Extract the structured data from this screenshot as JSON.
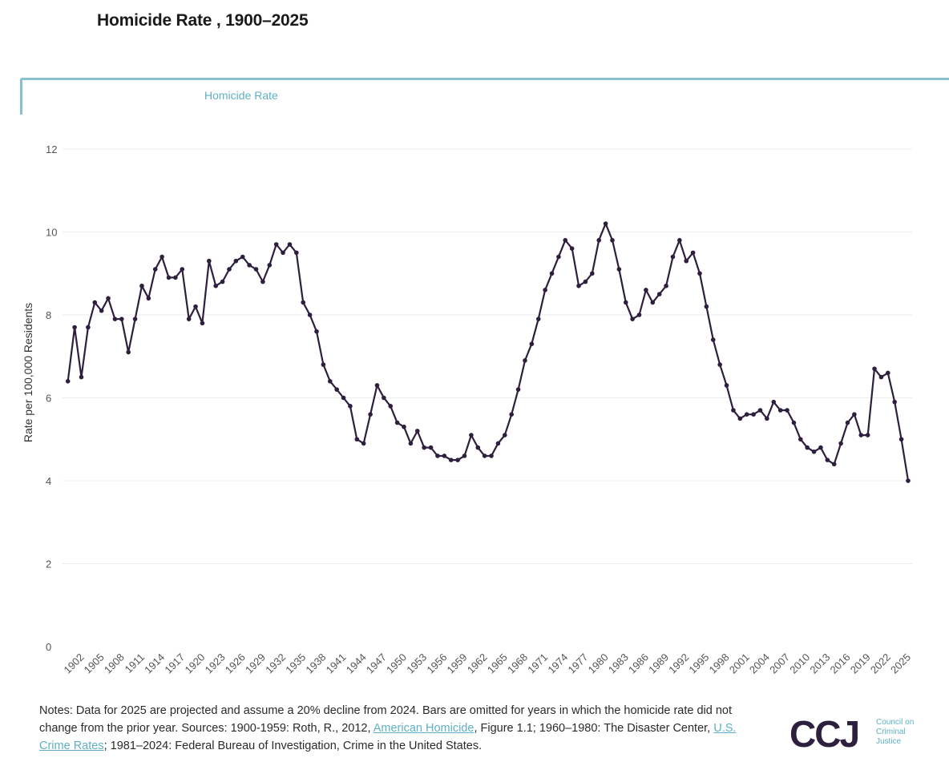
{
  "header": {
    "title": "Homicide Rate , 1900–2025"
  },
  "tabs": [
    {
      "label": "Homicide Rate"
    }
  ],
  "notes": {
    "part1": "Notes: Data for 2025 are projected and assume a 20% decline from 2024. Bars are omitted for years in which the homicide rate did not change from the prior year. Sources: 1900-1959: Roth, R., 2012, ",
    "link1": "American Homicide",
    "part2": ", Figure 1.1; 1960–1980: The Disaster Center, ",
    "link2": "U.S. Crime Rates",
    "part3": "; 1981–2024: Federal Bureau of Investigation, Crime in the United States."
  },
  "logo": {
    "mark": "CCJ",
    "line1": "Council on",
    "line2": "Criminal",
    "line3": "Justice"
  },
  "colors": {
    "line": "#2d1f3d",
    "accent": "#5fb0c4",
    "grid": "#ececec",
    "tick": "#555555"
  },
  "chart_data": {
    "type": "line",
    "title": "Homicide Rate , 1900–2025",
    "xlabel": "",
    "ylabel": "Rate per 100,000 Residents",
    "ylim": [
      0,
      12
    ],
    "yticks": [
      0,
      2,
      4,
      6,
      8,
      10,
      12
    ],
    "grid": true,
    "series": [
      {
        "name": "Homicide Rate",
        "x": [
          1900,
          1901,
          1902,
          1903,
          1904,
          1905,
          1906,
          1907,
          1908,
          1909,
          1910,
          1911,
          1912,
          1913,
          1914,
          1915,
          1916,
          1917,
          1918,
          1919,
          1920,
          1921,
          1922,
          1923,
          1924,
          1925,
          1926,
          1927,
          1928,
          1929,
          1930,
          1931,
          1932,
          1933,
          1934,
          1935,
          1936,
          1937,
          1938,
          1939,
          1940,
          1941,
          1942,
          1943,
          1944,
          1945,
          1946,
          1947,
          1948,
          1949,
          1950,
          1951,
          1952,
          1953,
          1954,
          1955,
          1956,
          1957,
          1958,
          1959,
          1960,
          1961,
          1962,
          1963,
          1964,
          1965,
          1966,
          1967,
          1968,
          1969,
          1970,
          1971,
          1972,
          1973,
          1974,
          1975,
          1976,
          1977,
          1978,
          1979,
          1980,
          1981,
          1982,
          1983,
          1984,
          1985,
          1986,
          1987,
          1988,
          1989,
          1990,
          1991,
          1992,
          1993,
          1994,
          1995,
          1996,
          1997,
          1998,
          1999,
          2000,
          2001,
          2002,
          2003,
          2004,
          2005,
          2006,
          2007,
          2008,
          2009,
          2010,
          2011,
          2012,
          2013,
          2014,
          2015,
          2016,
          2017,
          2018,
          2019,
          2020,
          2021,
          2022,
          2023,
          2024,
          2025
        ],
        "values": [
          6.4,
          7.7,
          6.5,
          7.7,
          8.3,
          8.1,
          8.4,
          7.9,
          7.9,
          7.1,
          7.9,
          8.7,
          8.4,
          9.1,
          9.4,
          8.9,
          8.9,
          9.1,
          7.9,
          8.2,
          7.8,
          9.3,
          8.7,
          8.8,
          9.1,
          9.3,
          9.4,
          9.2,
          9.1,
          8.8,
          9.2,
          9.7,
          9.5,
          9.7,
          9.5,
          8.3,
          8.0,
          7.6,
          6.8,
          6.4,
          6.2,
          6.0,
          5.8,
          5.0,
          4.9,
          5.6,
          6.3,
          6.0,
          5.8,
          5.4,
          5.3,
          4.9,
          5.2,
          4.8,
          4.8,
          4.6,
          4.6,
          4.5,
          4.5,
          4.6,
          5.1,
          4.8,
          4.6,
          4.6,
          4.9,
          5.1,
          5.6,
          6.2,
          6.9,
          7.3,
          7.9,
          8.6,
          9.0,
          9.4,
          9.8,
          9.6,
          8.7,
          8.8,
          9.0,
          9.8,
          10.2,
          9.8,
          9.1,
          8.3,
          7.9,
          8.0,
          8.6,
          8.3,
          8.5,
          8.7,
          9.4,
          9.8,
          9.3,
          9.5,
          9.0,
          8.2,
          7.4,
          6.8,
          6.3,
          5.7,
          5.5,
          5.6,
          5.6,
          5.7,
          5.5,
          5.9,
          5.7,
          5.7,
          5.4,
          5.0,
          4.8,
          4.7,
          4.8,
          4.5,
          4.4,
          4.9,
          5.4,
          5.6,
          5.1,
          5.1,
          6.7,
          6.5,
          6.6,
          5.9,
          5.0,
          4.0
        ]
      }
    ],
    "xticks": [
      1902,
      1905,
      1908,
      1911,
      1914,
      1917,
      1920,
      1923,
      1926,
      1929,
      1932,
      1935,
      1938,
      1941,
      1944,
      1947,
      1950,
      1953,
      1956,
      1959,
      1962,
      1965,
      1968,
      1971,
      1974,
      1977,
      1980,
      1983,
      1986,
      1989,
      1992,
      1995,
      1998,
      2001,
      2004,
      2007,
      2010,
      2013,
      2016,
      2019,
      2022,
      2025
    ]
  }
}
